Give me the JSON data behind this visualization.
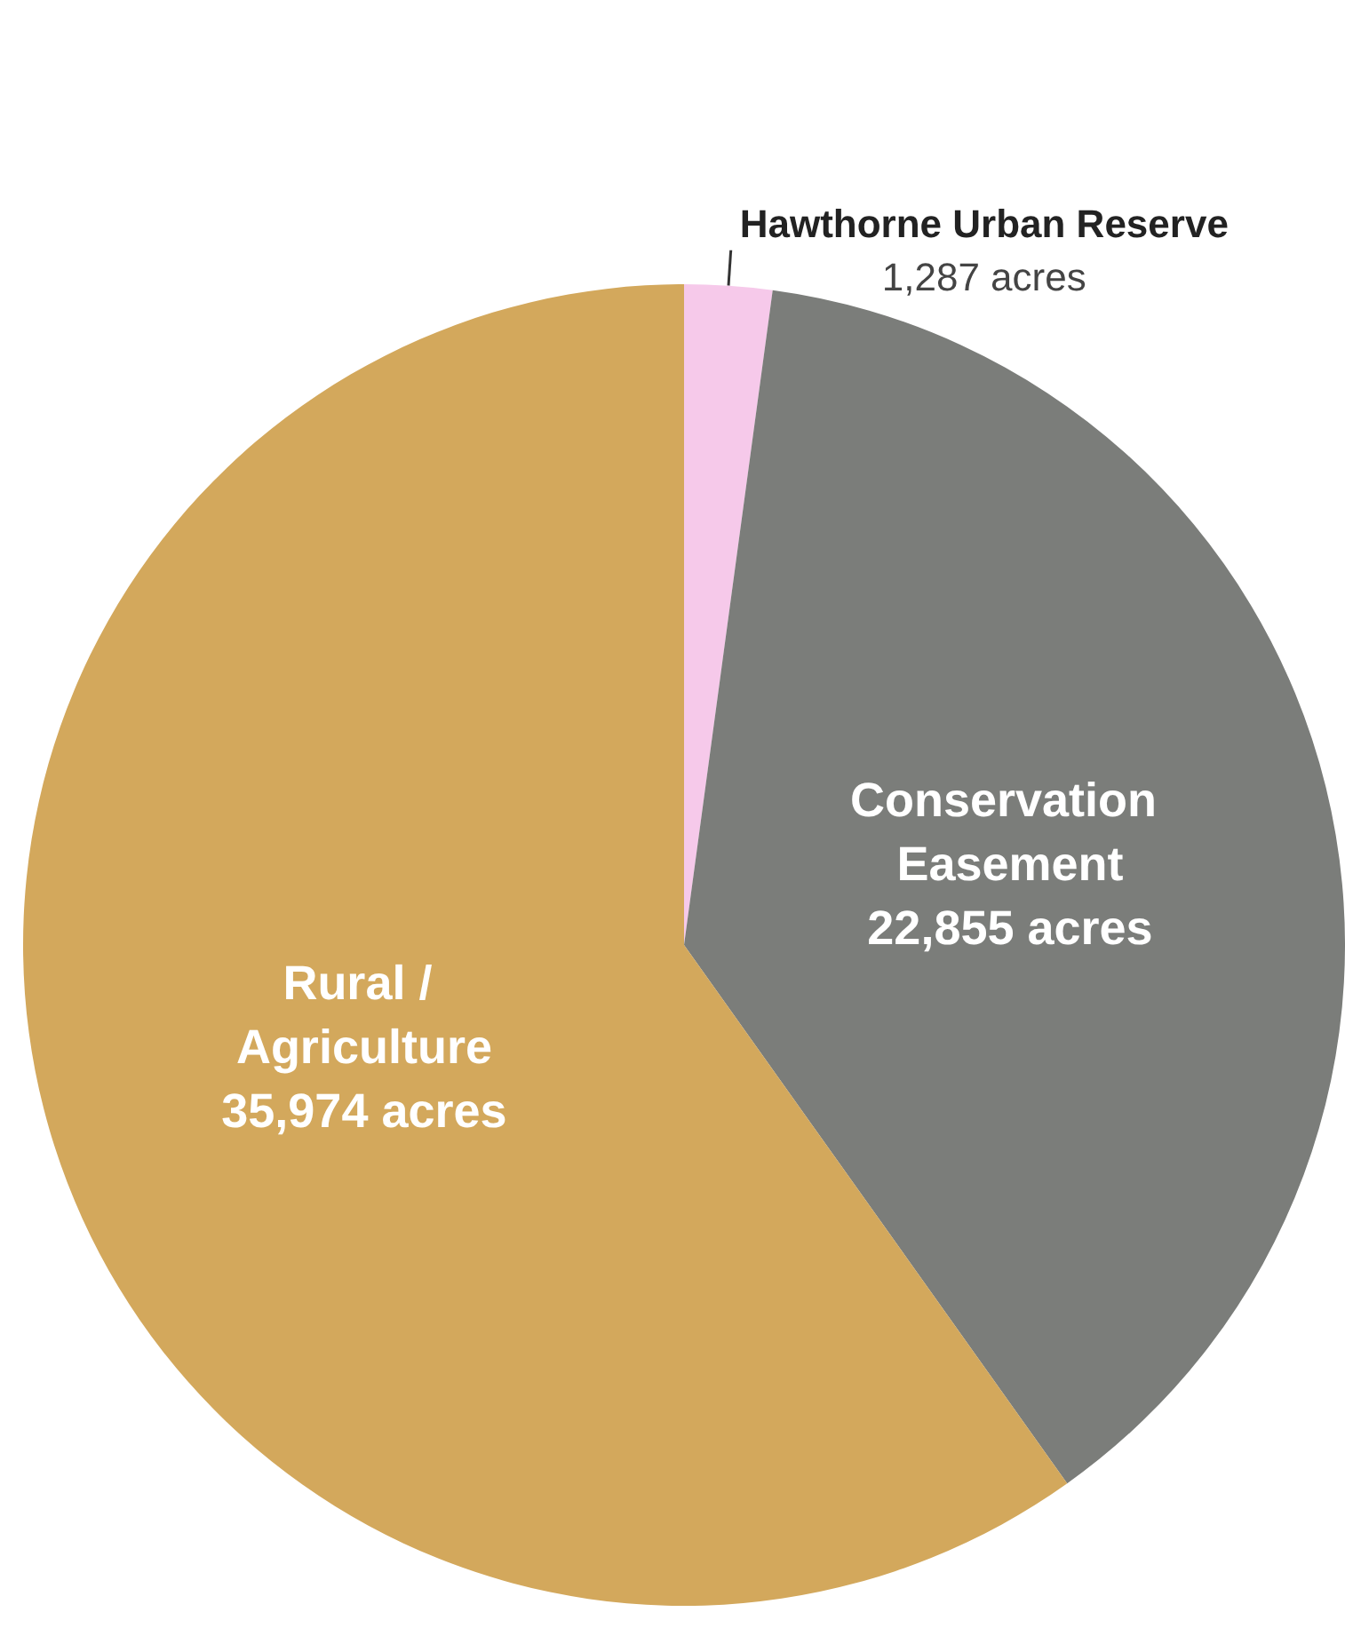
{
  "chart_data": {
    "type": "pie",
    "categories": [
      "Hawthorne Urban Reserve",
      "Conservation Easement",
      "Rural / Agriculture"
    ],
    "values": [
      1287,
      22855,
      35974
    ],
    "colors": [
      "#f6c9ea",
      "#7b7d7a",
      "#d3a85c"
    ],
    "value_labels": [
      "1,287 acres",
      "22,855 acres",
      "35,974 acres"
    ],
    "legend": false
  }
}
